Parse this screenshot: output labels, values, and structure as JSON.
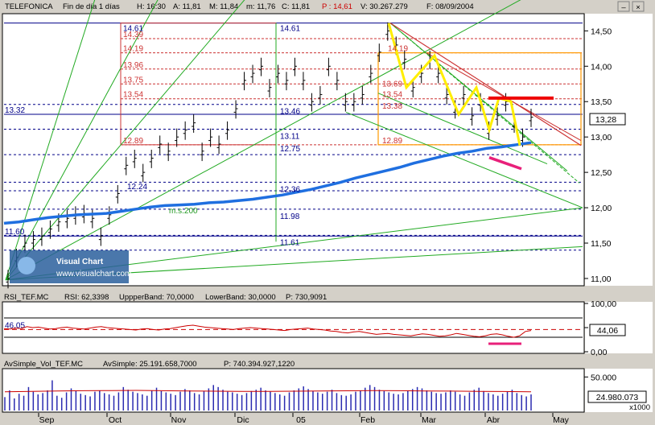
{
  "header": {
    "symbol": "TELEFONICA",
    "timeframe": "Fin de día 1 días",
    "high": "H: 16:30",
    "open": "A: 11,81",
    "max": "M: 11,84",
    "min": "m: 11,76",
    "close": "C: 11,81",
    "last": "P : 14,61",
    "volume": "V: 30.267.279",
    "date": "F: 08/09/2004"
  },
  "window_buttons": [
    "–",
    "×"
  ],
  "watermark": {
    "title": "Visual Chart",
    "url": "www.visualchart.com"
  },
  "ma_label": "m.s.200",
  "price_tag": "13,28",
  "rsi_header": {
    "name": "RSI_TEF.MC",
    "rsi": "RSI: 62,3398",
    "upper": "UppperBand: 70,0000",
    "lower": "LowerBand: 30,0000",
    "p": "P: 730,9091"
  },
  "rsi_tag": "44,06",
  "rsi_level": "46,05",
  "vol_header": {
    "name": "AvSimple_Vol_TEF.MC",
    "avs": "AvSimple: 25.191.658,7000",
    "p": "P: 740.394.927,1220"
  },
  "vol_tag": "24.980.073",
  "vol_unit": "x1000",
  "colors": {
    "price": "#000000",
    "ma": "#1f6fe0",
    "fan": "#22aa22",
    "fib": "#cc3333",
    "trend": "#ff9900",
    "highlight": "#ffee00",
    "pink": "#e8207a",
    "rsi": "#cc0000",
    "vol": "#2a2ab0"
  },
  "chart_data": [
    {
      "type": "line",
      "title": "TELEFONICA",
      "series": [
        {
          "name": "m.s.200"
        }
      ],
      "y_ticks": [
        "14,50",
        "14,00",
        "13,50",
        "13,00",
        "12,50",
        "12,00",
        "11,50",
        "11,00"
      ],
      "y_tick_values": [
        14.5,
        14.0,
        13.5,
        13.0,
        12.5,
        12.0,
        11.5,
        11.0
      ],
      "ylim": [
        10.92,
        14.72
      ],
      "x_ticks": [
        "Sep",
        "Oct",
        "Nov",
        "Dic",
        "05",
        "Feb",
        "Mar",
        "Abr",
        "May"
      ],
      "levels_left": [
        "14.61",
        "14.39",
        "14.19",
        "13.96",
        "13.75",
        "13.54",
        "13.32",
        "12.89",
        "12.24",
        "11.60"
      ],
      "level_values_left": [
        14.61,
        14.39,
        14.19,
        13.96,
        13.75,
        13.54,
        13.32,
        12.89,
        12.24,
        11.6
      ],
      "levels_mid": [
        "14.61",
        "13.46",
        "13.11",
        "12.75",
        "12.36",
        "11.98",
        "11.61"
      ],
      "level_values_mid": [
        14.61,
        13.46,
        13.11,
        12.75,
        12.36,
        11.98,
        11.61
      ],
      "levels_right": [
        "14.19",
        "13.69",
        "13.54",
        "13.38",
        "12.89"
      ],
      "level_values_right": [
        14.19,
        13.69,
        13.54,
        13.38,
        12.89
      ],
      "close": [
        11.0,
        11.3,
        11.5,
        11.55,
        11.6,
        11.7,
        11.8,
        11.85,
        11.9,
        11.92,
        11.85,
        11.6,
        11.9,
        12.2,
        12.6,
        12.7,
        12.5,
        12.7,
        12.9,
        12.8,
        13.0,
        13.1,
        13.2,
        12.8,
        13.0,
        12.9,
        13.1,
        13.4,
        13.8,
        13.9,
        14.0,
        13.7,
        13.9,
        13.8,
        14.0,
        13.8,
        13.5,
        13.6,
        14.0,
        13.8,
        13.5,
        13.5,
        13.6,
        13.9,
        14.2,
        14.5,
        14.3,
        14.1,
        13.7,
        13.9,
        14.1,
        13.9,
        13.6,
        13.4,
        13.6,
        13.3,
        13.5,
        13.1,
        13.3,
        13.5,
        13.2,
        13.0,
        13.28
      ],
      "ma200": [
        11.78,
        11.8,
        11.83,
        11.86,
        11.88,
        11.9,
        11.91,
        11.92,
        11.95,
        11.98,
        12.01,
        12.03,
        12.04,
        12.05,
        12.07,
        12.08,
        12.1,
        12.12,
        12.15,
        12.18,
        12.22,
        12.26,
        12.31,
        12.36,
        12.42,
        12.47,
        12.52,
        12.57,
        12.63,
        12.68,
        12.73,
        12.77,
        12.8,
        12.84,
        12.86,
        12.89,
        12.92
      ]
    },
    {
      "type": "line",
      "title": "RSI_TEF.MC",
      "series": [
        {
          "name": "RSI"
        }
      ],
      "y_ticks": [
        "100,00",
        "50",
        "0,00"
      ],
      "ylim": [
        0,
        100
      ],
      "upper": 70,
      "lower": 30,
      "level": 46.05,
      "values": [
        48,
        47,
        49,
        48,
        52,
        50,
        51,
        49,
        47,
        48,
        50,
        51,
        49,
        48,
        47,
        49,
        51,
        52,
        50,
        49,
        48,
        47,
        46,
        45,
        47,
        48,
        46,
        45,
        47,
        48,
        50,
        52,
        54,
        55,
        53,
        51,
        50,
        49,
        48,
        47,
        46,
        48,
        49,
        50,
        49,
        48,
        47,
        46,
        45,
        44,
        46,
        47,
        48,
        49,
        47,
        46,
        45,
        43,
        42,
        40,
        39,
        41,
        42,
        40,
        38,
        36,
        37,
        38,
        36,
        35,
        34,
        33,
        35,
        37,
        36,
        34,
        32,
        33,
        35,
        38,
        36,
        34,
        32,
        31,
        33,
        36,
        37,
        35,
        32,
        30,
        33,
        42,
        44
      ]
    },
    {
      "type": "bar",
      "title": "AvSimple_Vol_TEF.MC",
      "series": [
        {
          "name": "AvSimple"
        }
      ],
      "y_ticks": [
        "50.000"
      ],
      "ylim": [
        0,
        60
      ],
      "values": [
        20,
        30,
        18,
        25,
        22,
        35,
        28,
        24,
        26,
        30,
        45,
        22,
        19,
        27,
        33,
        29,
        25,
        23,
        21,
        28,
        30,
        26,
        24,
        22,
        27,
        35,
        31,
        28,
        26,
        24,
        22,
        30,
        34,
        29,
        27,
        25,
        23,
        28,
        32,
        30,
        26,
        24,
        29,
        33,
        38,
        35,
        31,
        28,
        27,
        25,
        23,
        26,
        29,
        31,
        34,
        30,
        28,
        26,
        24,
        22,
        27,
        30,
        33,
        36,
        32,
        29,
        27,
        25,
        28,
        31,
        26,
        23,
        22,
        24,
        28,
        30,
        34,
        38,
        35,
        31,
        29,
        27,
        25,
        24,
        26,
        29,
        32,
        35,
        33,
        30,
        28,
        26,
        25,
        27,
        30,
        28,
        24,
        22,
        27,
        31,
        34,
        29,
        26,
        24,
        22,
        25,
        28,
        31,
        26,
        23,
        21,
        24
      ],
      "avg": [
        28,
        28.5,
        29,
        29.5,
        29.8,
        30,
        29.5,
        29,
        28.8,
        28.5,
        28.6,
        28.8,
        29,
        29.4,
        29.7,
        29.5,
        29.2,
        28.9,
        28.5,
        28.3,
        28
      ]
    }
  ]
}
